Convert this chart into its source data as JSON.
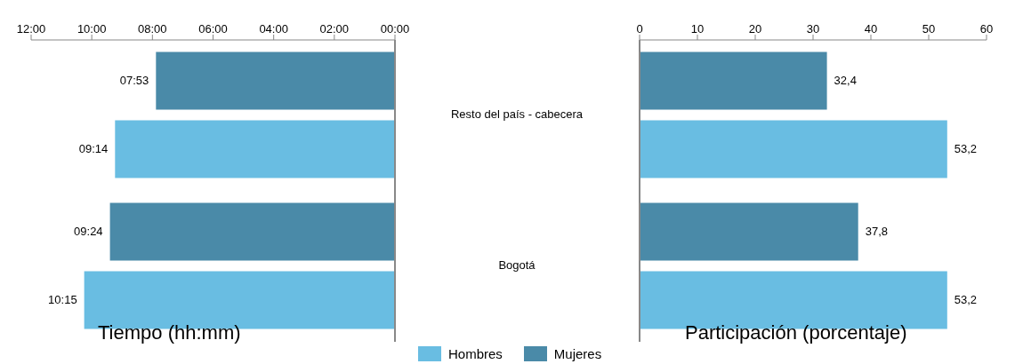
{
  "chart_data": [
    {
      "type": "bar",
      "orientation": "horizontal",
      "xlabel": "Tiempo (hh:mm)",
      "categories": [
        "Resto del país - cabecera",
        "Bogotá"
      ],
      "xlim": [
        12,
        0
      ],
      "xticks": [
        {
          "value": 12,
          "label": "12:00"
        },
        {
          "value": 10,
          "label": "10:00"
        },
        {
          "value": 8,
          "label": "08:00"
        },
        {
          "value": 6,
          "label": "06:00"
        },
        {
          "value": 4,
          "label": "04:00"
        },
        {
          "value": 2,
          "label": "02:00"
        },
        {
          "value": 0,
          "label": "00:00"
        }
      ],
      "series": [
        {
          "name": "Hombres",
          "color": "#69bde2",
          "values": [
            9.233,
            10.25
          ],
          "value_labels": [
            "09:14",
            "10:15"
          ]
        },
        {
          "name": "Mujeres",
          "color": "#4a8aa8",
          "values": [
            7.883,
            9.4
          ],
          "value_labels": [
            "07:53",
            "09:24"
          ]
        }
      ],
      "legend": "bottom"
    },
    {
      "type": "bar",
      "orientation": "horizontal",
      "xlabel": "Participación (porcentaje)",
      "xlim": [
        0,
        60
      ],
      "xticks": [
        0,
        10,
        20,
        30,
        40,
        50,
        60
      ],
      "tick_labels": "x",
      "series": [
        {
          "color": "#69bde2",
          "values": [
            53.2,
            53.2
          ],
          "value_labels": [
            "53,2",
            "53,2"
          ]
        },
        {
          "color": "#4a8aa8",
          "values": [
            32.4,
            37.8
          ],
          "value_labels": [
            "32,4",
            "37,8"
          ]
        }
      ]
    }
  ]
}
